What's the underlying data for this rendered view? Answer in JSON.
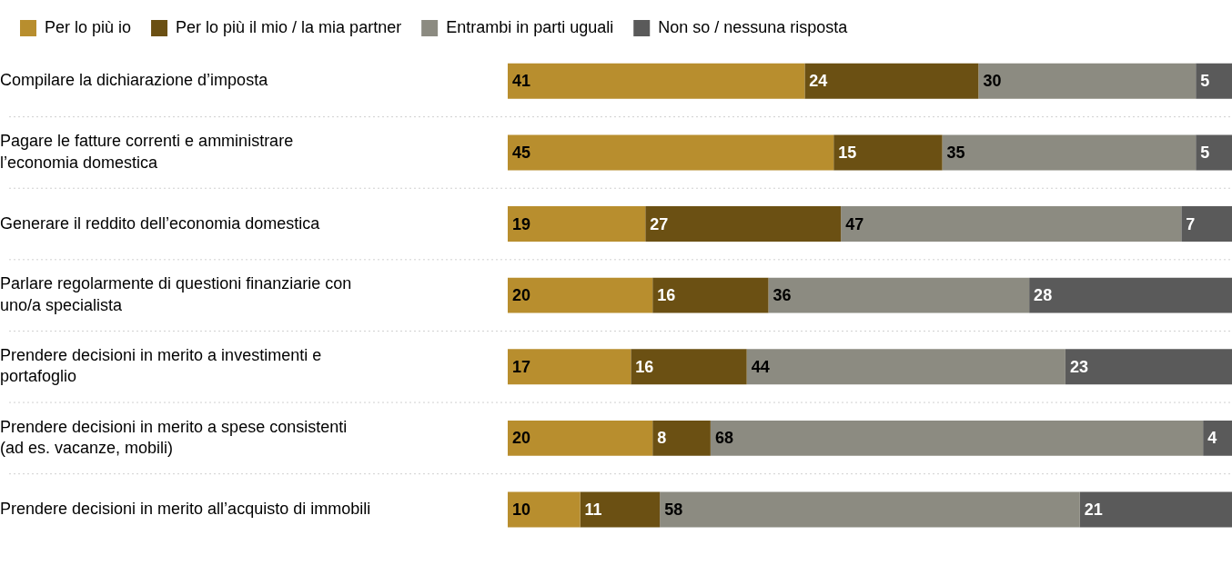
{
  "chart_data": {
    "type": "bar",
    "orientation": "horizontal",
    "stacked": true,
    "data_labels": true,
    "legend": "top left",
    "categories": [
      "Compilare la dichiarazione d’imposta",
      "Pagare le fatture correnti e amministrare l’economia domestica",
      "Generare il reddito dell’economia domestica",
      "Parlare regolarmente di questioni finanziarie con uno/a specialista",
      "Prendere decisioni in merito a investimenti e portafoglio",
      "Prendere decisioni in merito a spese consistenti (ad es. vacanze, mobili)",
      "Prendere decisioni in merito all’acquisto di immobili"
    ],
    "series": [
      {
        "name": "Per lo più io",
        "color": "#b88e2e",
        "values": [
          41,
          45,
          19,
          20,
          17,
          20,
          10
        ]
      },
      {
        "name": "Per lo più il mio / la mia partner",
        "color": "#6b5013",
        "values": [
          24,
          15,
          27,
          16,
          16,
          8,
          11
        ]
      },
      {
        "name": "Entrambi in parti uguali",
        "color": "#8c8b81",
        "values": [
          30,
          35,
          47,
          36,
          44,
          68,
          58
        ]
      },
      {
        "name": "Non so / nessuna risposta",
        "color": "#5a5a5a",
        "values": [
          5,
          5,
          7,
          28,
          23,
          4,
          21
        ]
      }
    ]
  }
}
